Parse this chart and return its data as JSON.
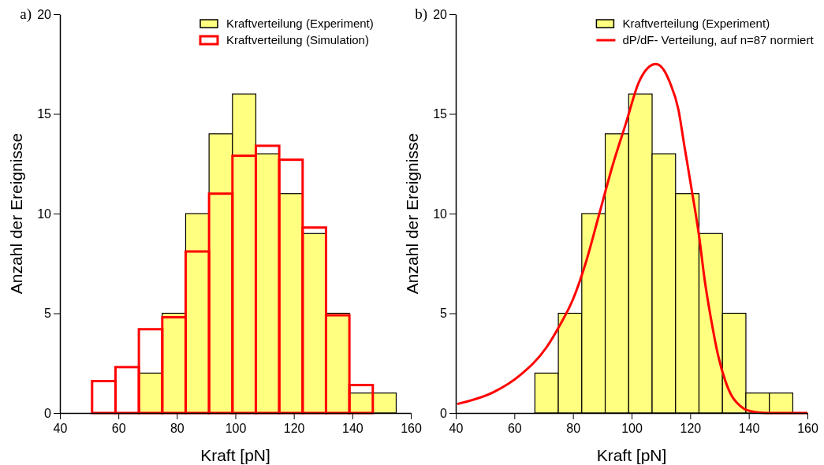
{
  "chart_data": [
    {
      "type": "histogram",
      "title": "a)",
      "xlabel": "Kraft [pN]",
      "ylabel": "Anzahl der Ereignisse",
      "xlim": [
        40,
        160
      ],
      "xticks": [
        40,
        60,
        80,
        100,
        120,
        140,
        160
      ],
      "ylim": [
        0,
        20
      ],
      "yticks": [
        0,
        5,
        10,
        15,
        20
      ],
      "legend": "top right",
      "bins": [
        51,
        59,
        67,
        75,
        83,
        91,
        99,
        107,
        115,
        123,
        131,
        139,
        147,
        155
      ],
      "series": [
        {
          "name": "Kraftverteilung (Experiment)",
          "color": "#ffff80",
          "values": [
            null,
            null,
            2,
            5,
            10,
            14,
            16,
            13,
            11,
            9,
            5,
            1,
            1
          ]
        },
        {
          "name": "Kraftverteilung (Simulation)",
          "color": "#ff0000",
          "values": [
            1.6,
            2.3,
            4.2,
            4.8,
            8.1,
            11,
            12.9,
            13.4,
            12.7,
            9.3,
            4.9,
            1.4,
            0
          ]
        }
      ]
    },
    {
      "type": "histogram",
      "title": "b)",
      "xlabel": "Kraft [pN]",
      "ylabel": "Anzahl der Ereignisse",
      "xlim": [
        40,
        160
      ],
      "xticks": [
        40,
        60,
        80,
        100,
        120,
        140,
        160
      ],
      "ylim": [
        0,
        20
      ],
      "yticks": [
        0,
        5,
        10,
        15,
        20
      ],
      "legend": "top right",
      "bins": [
        51,
        59,
        67,
        75,
        83,
        91,
        99,
        107,
        115,
        123,
        131,
        139,
        147,
        155
      ],
      "series": [
        {
          "name": "Kraftverteilung (Experiment)",
          "color": "#ffff80",
          "values": [
            0,
            0,
            2,
            5,
            10,
            14,
            16,
            13,
            11,
            9,
            5,
            1,
            1
          ]
        },
        {
          "name": "dP/dF- Verteilung, auf n=87 normiert",
          "type": "line",
          "color": "#ff0000",
          "x": [
            40.5,
            53,
            62,
            71,
            75.5,
            80,
            84.5,
            89,
            93.5,
            98,
            102.5,
            105.5,
            108.3,
            111,
            113,
            116,
            118,
            120.5,
            123,
            125,
            127,
            129.5,
            132,
            134,
            136,
            138.5,
            141,
            143,
            146,
            150,
            155,
            160
          ],
          "values": [
            0.45,
            1.05,
            1.9,
            3.3,
            4.4,
            5.7,
            7.6,
            10,
            12.4,
            14.5,
            16.6,
            17.3,
            17.5,
            17.2,
            16.6,
            15.2,
            13.4,
            11.2,
            8.9,
            6.6,
            4.8,
            2.9,
            1.6,
            0.9,
            0.5,
            0.2,
            0.08,
            0.03,
            0,
            0,
            0,
            0
          ]
        }
      ]
    }
  ]
}
